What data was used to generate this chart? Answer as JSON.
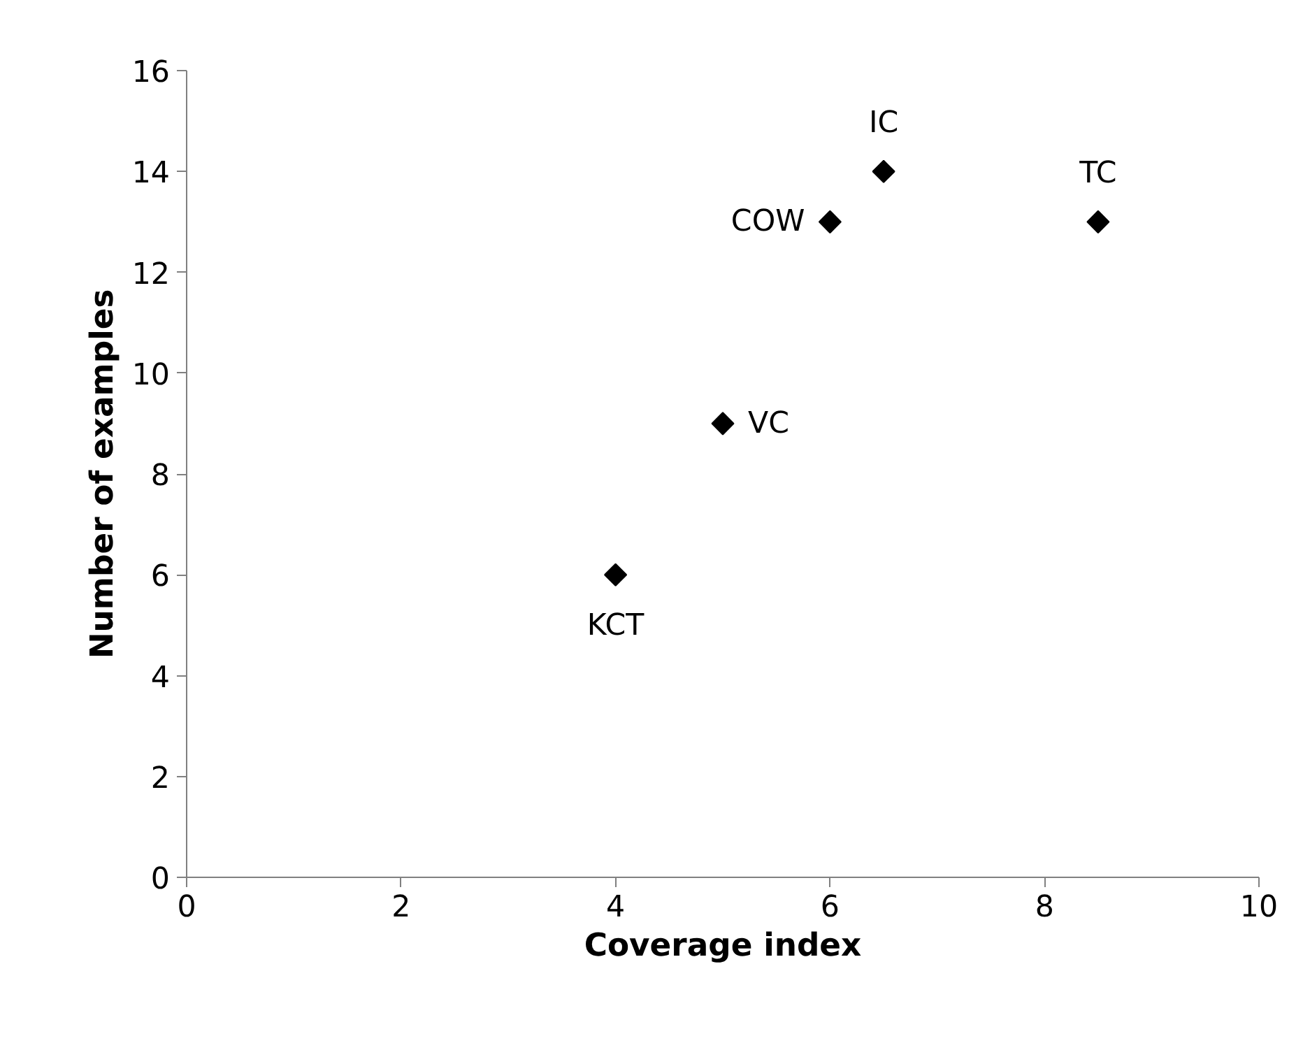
{
  "chart_data": {
    "type": "scatter",
    "xlabel": "Coverage index",
    "ylabel": "Number of examples",
    "x": [
      4,
      5,
      6,
      6.5,
      8.5
    ],
    "values": [
      6,
      9,
      13,
      14,
      13
    ],
    "color": "#000000",
    "marker": "diamond",
    "xlim": [
      0,
      10
    ],
    "xticks": [
      0,
      2,
      4,
      6,
      8,
      10
    ],
    "ylim": [
      0,
      16
    ],
    "yticks": [
      0,
      2,
      4,
      6,
      8,
      10,
      12,
      14,
      16
    ],
    "grid": false,
    "annotations": [
      {
        "text": "KCT",
        "x": 4,
        "y": 6
      },
      {
        "text": "VC",
        "x": 5,
        "y": 9
      },
      {
        "text": "COW",
        "x": 6,
        "y": 13
      },
      {
        "text": "IC",
        "x": 6.5,
        "y": 14
      },
      {
        "text": "TC",
        "x": 8.5,
        "y": 13
      }
    ]
  }
}
